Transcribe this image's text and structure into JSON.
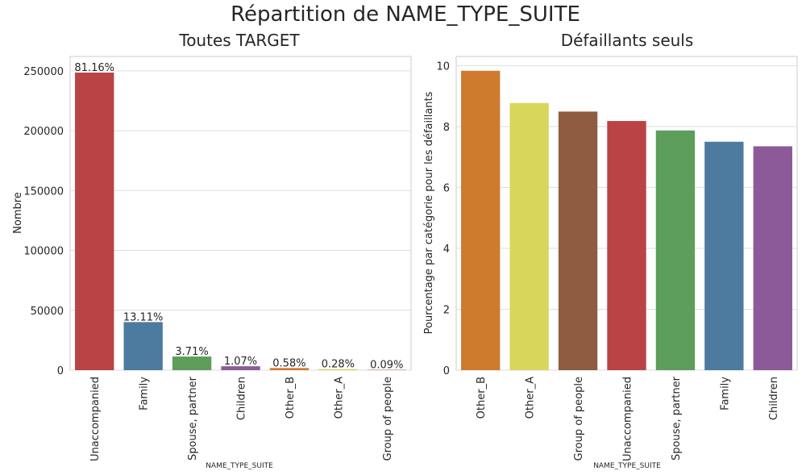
{
  "figure": {
    "title": "Répartition de NAME_TYPE_SUITE"
  },
  "chart_data": [
    {
      "type": "bar",
      "title": "Toutes TARGET",
      "xlabel": "NAME_TYPE_SUITE",
      "ylabel": "Nombre",
      "ylim": [
        0,
        262000
      ],
      "yticks": [
        0,
        50000,
        100000,
        150000,
        200000,
        250000
      ],
      "categories": [
        "Unaccompanied",
        "Family",
        "Spouse, partner",
        "Children",
        "Other_B",
        "Other_A",
        "Group of people"
      ],
      "values": [
        248526,
        40149,
        11370,
        3267,
        1770,
        866,
        271
      ],
      "data_labels": [
        "81.16%",
        "13.11%",
        "3.71%",
        "1.07%",
        "0.58%",
        "0.28%",
        "0.09%"
      ],
      "colors": [
        "#b94345",
        "#4d7ba0",
        "#5c9e5a",
        "#8c5a98",
        "#ce7b2e",
        "#d8d65b",
        "#8f5c41"
      ],
      "grid": true,
      "legend": "none"
    },
    {
      "type": "bar",
      "title": "Défaillants seuls",
      "xlabel": "NAME_TYPE_SUITE",
      "ylabel": "Pourcentage par catégorie pour les défaillants",
      "ylim": [
        0,
        10.3
      ],
      "yticks": [
        0,
        2,
        4,
        6,
        8,
        10
      ],
      "categories": [
        "Other_B",
        "Other_A",
        "Group of people",
        "Unaccompanied",
        "Spouse, partner",
        "Family",
        "Children"
      ],
      "values": [
        9.83,
        8.77,
        8.49,
        8.18,
        7.87,
        7.5,
        7.35
      ],
      "colors": [
        "#ce7b2e",
        "#d8d65b",
        "#8f5c41",
        "#b94345",
        "#5c9e5a",
        "#4d7ba0",
        "#8c5a98"
      ],
      "grid": true,
      "legend": "none"
    }
  ]
}
